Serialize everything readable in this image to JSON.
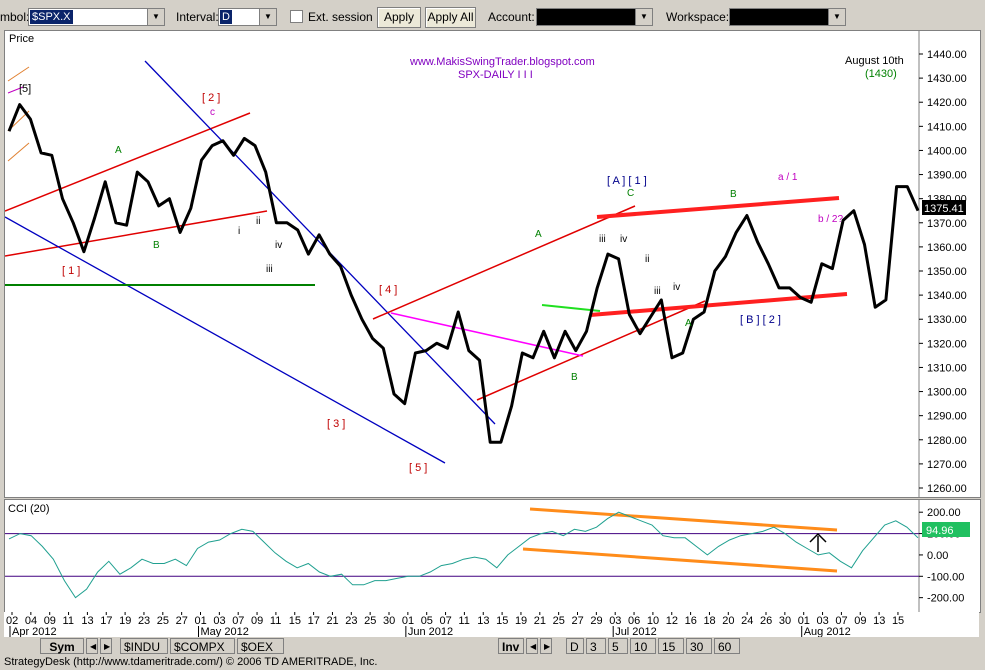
{
  "toolbar": {
    "symbol_label": "mbol:",
    "symbol_value": "$SPX.X",
    "interval_label": "Interval:",
    "interval_value": "D",
    "ext_session_label": "Ext. session",
    "apply_label": "Apply",
    "apply_all_label": "Apply All",
    "account_label": "Account:",
    "account_value": "",
    "workspace_label": "Workspace:",
    "workspace_value": ""
  },
  "price_panel": {
    "label": "Price",
    "current_price": "1375.41",
    "source": "www.MakisSwingTrader.blogspot.com",
    "subtitle": "SPX-DAILY I I I",
    "note_date": "August 10th",
    "note_target": "(1430)"
  },
  "cci_panel": {
    "label": "CCI (20)",
    "current_value": "94.96"
  },
  "x_axis": {
    "day_ticks": [
      "02",
      "04",
      "09",
      "11",
      "13",
      "17",
      "19",
      "23",
      "25",
      "27",
      "01",
      "03",
      "07",
      "09",
      "11",
      "15",
      "17",
      "21",
      "23",
      "25",
      "30",
      "01",
      "05",
      "07",
      "11",
      "13",
      "15",
      "19",
      "21",
      "25",
      "27",
      "29",
      "03",
      "06",
      "10",
      "12",
      "16",
      "18",
      "20",
      "24",
      "26",
      "30",
      "01",
      "03",
      "07",
      "09",
      "13",
      "15"
    ],
    "month_labels": [
      "Apr 2012",
      "May 2012",
      "Jun 2012",
      "Jul 2012",
      "Aug 2012"
    ]
  },
  "bottom_tabs": {
    "sym": "Sym",
    "indices": [
      "$INDU",
      "$COMPX",
      "$OEX"
    ],
    "inv": "Inv",
    "intervals": [
      "D",
      "3",
      "5",
      "10",
      "15",
      "30",
      "60"
    ]
  },
  "status_text": "StrategyDesk (http://www.tdameritrade.com/) © 2006 TD AMERITRADE, Inc.",
  "colors": {
    "price_line": "#000000",
    "channel_red": "#e00000",
    "channel_blue": "#0000c0",
    "support_green": "#008000",
    "pink_line": "#ff00ff",
    "cci_line": "#20a090",
    "cci_trend": "#ff8c1a",
    "price_badge": "#000000",
    "cci_badge": "#20b060",
    "wave_labels": "#c000c0"
  },
  "chart_data": [
    {
      "type": "line",
      "title": "",
      "ylabel": "Price",
      "ylim": [
        1260,
        1440
      ],
      "yticks": [
        1260,
        1270,
        1280,
        1290,
        1300,
        1310,
        1320,
        1330,
        1340,
        1350,
        1360,
        1370,
        1380,
        1390,
        1400,
        1410,
        1420,
        1430,
        1440
      ],
      "y": [
        1408,
        1419,
        1413,
        1399,
        1398,
        1380,
        1370,
        1358,
        1372,
        1387,
        1370,
        1369,
        1391,
        1387,
        1377,
        1380,
        1366,
        1376,
        1396,
        1402,
        1404,
        1398,
        1405,
        1402,
        1391,
        1370,
        1370,
        1367,
        1357,
        1365,
        1357,
        1352,
        1340,
        1330,
        1322,
        1318,
        1299,
        1295,
        1316,
        1317,
        1320,
        1318,
        1333,
        1317,
        1313,
        1279,
        1279,
        1294,
        1316,
        1314,
        1325,
        1314,
        1325,
        1317,
        1325,
        1343,
        1357,
        1355,
        1332,
        1324,
        1331,
        1338,
        1314,
        1316,
        1330,
        1333,
        1350,
        1356,
        1366,
        1373,
        1362,
        1353,
        1343,
        1343,
        1339,
        1337,
        1353,
        1351,
        1371,
        1375,
        1361,
        1335,
        1338,
        1385,
        1385,
        1375
      ]
    },
    {
      "type": "line",
      "title": "",
      "ylabel": "CCI (20)",
      "ylim": [
        -225,
        215
      ],
      "yticks": [
        200,
        100,
        0,
        -100,
        -200
      ],
      "y": [
        75,
        100,
        90,
        40,
        -20,
        -120,
        -200,
        -160,
        -80,
        -30,
        -90,
        -60,
        -20,
        -40,
        -40,
        -20,
        -50,
        30,
        60,
        70,
        100,
        120,
        110,
        60,
        10,
        -30,
        -60,
        -40,
        -80,
        -100,
        -90,
        -140,
        -140,
        -120,
        -120,
        -110,
        -100,
        -100,
        -80,
        -50,
        -40,
        -20,
        -10,
        -20,
        -60,
        0,
        40,
        80,
        100,
        110,
        90,
        120,
        110,
        130,
        170,
        200,
        180,
        160,
        140,
        90,
        80,
        80,
        40,
        0,
        40,
        70,
        90,
        100,
        110,
        130,
        100,
        60,
        30,
        0,
        10,
        -30,
        -60,
        20,
        80,
        140,
        160,
        130,
        80
      ]
    }
  ]
}
